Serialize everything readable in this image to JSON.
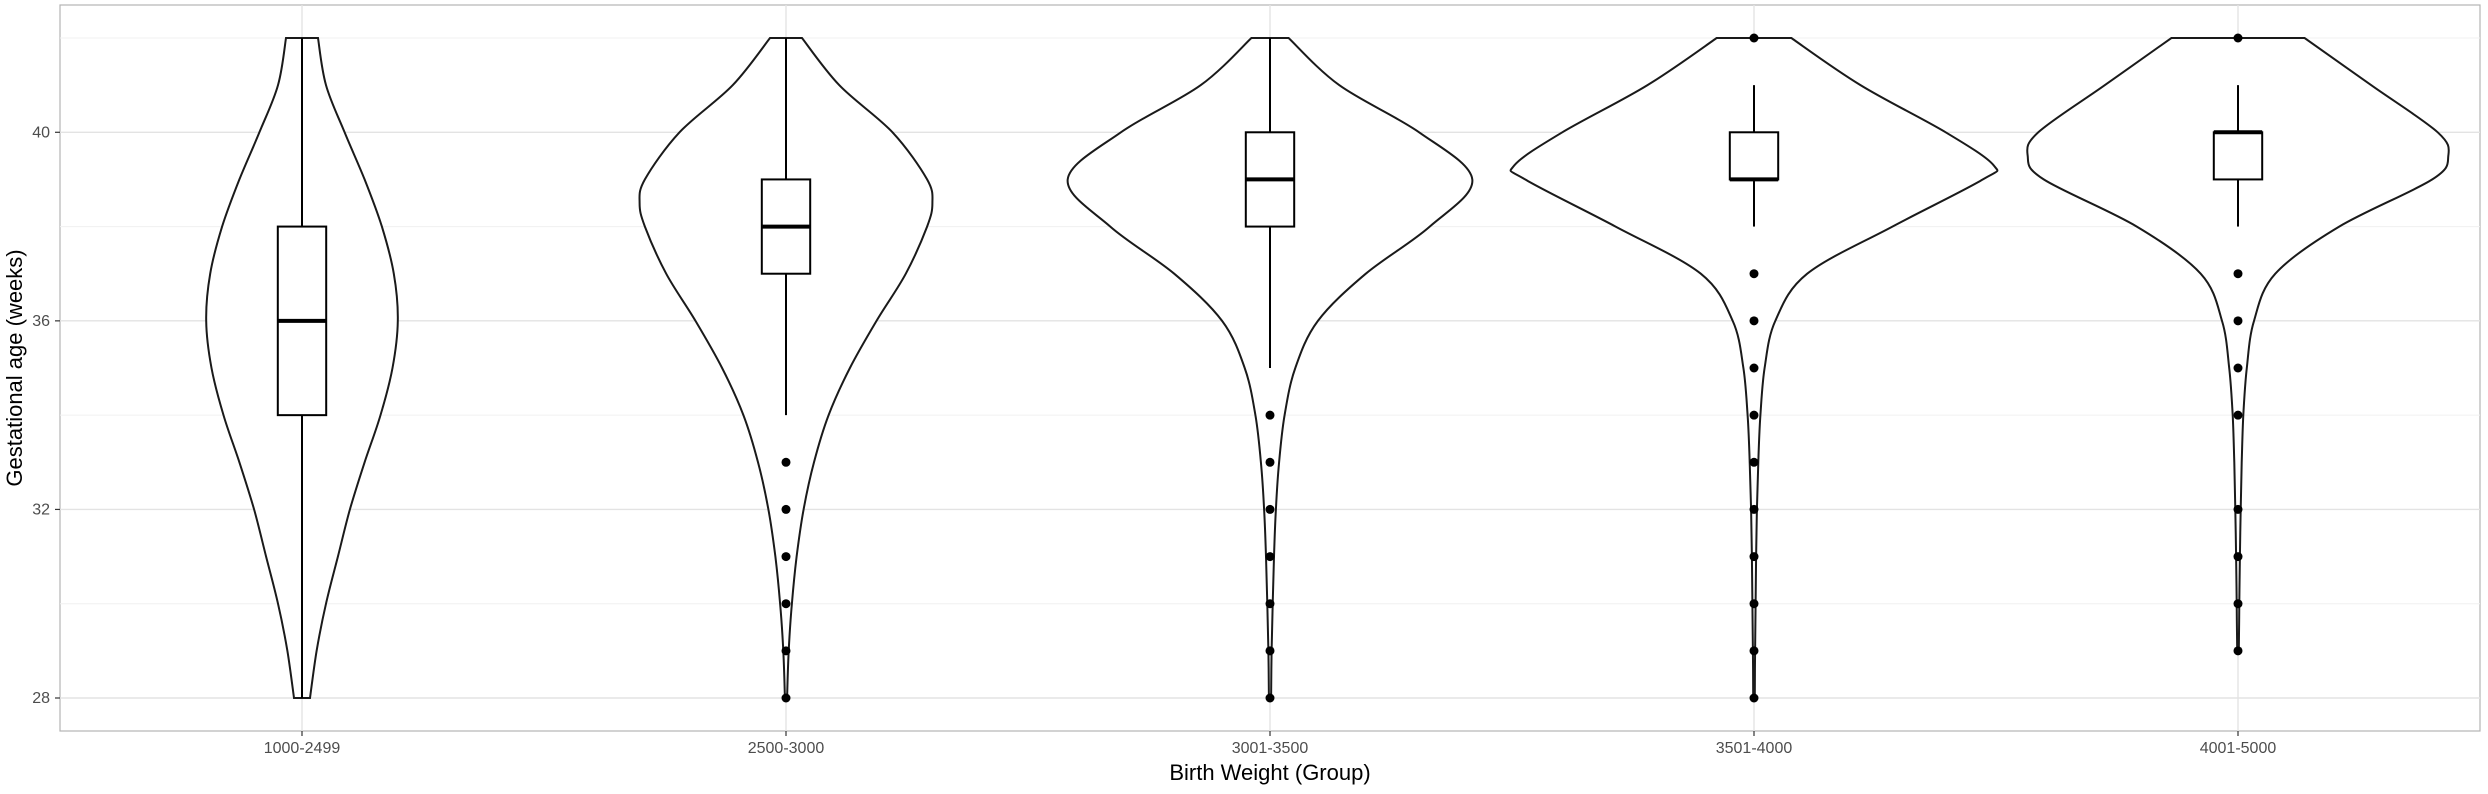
{
  "chart_data": {
    "type": "violin",
    "title": "",
    "xlabel": "Birth Weight (Group)",
    "ylabel": "Gestational age (weeks)",
    "ylim": [
      27.3,
      42.7
    ],
    "yticks": [
      28,
      32,
      36,
      40
    ],
    "grid": true,
    "categories": [
      "1000-2499",
      "2500-3000",
      "3001-3500",
      "3501-4000",
      "4001-5000"
    ],
    "groups": [
      {
        "name": "1000-2499",
        "violin": [
          [
            28,
            0.03
          ],
          [
            29,
            0.055
          ],
          [
            30,
            0.09
          ],
          [
            31,
            0.135
          ],
          [
            32,
            0.18
          ],
          [
            33,
            0.235
          ],
          [
            34,
            0.295
          ],
          [
            35,
            0.34
          ],
          [
            36,
            0.36
          ],
          [
            37,
            0.345
          ],
          [
            38,
            0.3
          ],
          [
            39,
            0.235
          ],
          [
            40,
            0.16
          ],
          [
            41,
            0.09
          ],
          [
            42,
            0.06
          ]
        ],
        "box": {
          "min": 28,
          "q1": 34,
          "median": 36,
          "q3": 38,
          "max": 42
        },
        "outliers": []
      },
      {
        "name": "2500-3000",
        "violin": [
          [
            28,
            0.004
          ],
          [
            29,
            0.01
          ],
          [
            30,
            0.022
          ],
          [
            31,
            0.04
          ],
          [
            32,
            0.066
          ],
          [
            33,
            0.105
          ],
          [
            34,
            0.16
          ],
          [
            35,
            0.24
          ],
          [
            36,
            0.34
          ],
          [
            37,
            0.45
          ],
          [
            38,
            0.53
          ],
          [
            38.5,
            0.55
          ],
          [
            39,
            0.53
          ],
          [
            40,
            0.4
          ],
          [
            41,
            0.2
          ],
          [
            42,
            0.06
          ]
        ],
        "box": {
          "min": 34,
          "q1": 37,
          "median": 38,
          "q3": 39,
          "max": 42
        },
        "outliers": [
          33,
          32,
          31,
          30,
          29,
          28
        ]
      },
      {
        "name": "3001-3500",
        "violin": [
          [
            28,
            0.004
          ],
          [
            29,
            0.006
          ],
          [
            30,
            0.01
          ],
          [
            31,
            0.015
          ],
          [
            32,
            0.022
          ],
          [
            33,
            0.034
          ],
          [
            34,
            0.055
          ],
          [
            35,
            0.095
          ],
          [
            36,
            0.18
          ],
          [
            37,
            0.36
          ],
          [
            38,
            0.6
          ],
          [
            39,
            0.76
          ],
          [
            40,
            0.56
          ],
          [
            41,
            0.26
          ],
          [
            42,
            0.07
          ]
        ],
        "box": {
          "min": 35,
          "q1": 38,
          "median": 39,
          "q3": 40,
          "max": 42
        },
        "outliers": [
          34,
          33,
          32,
          31,
          30,
          29,
          28
        ]
      },
      {
        "name": "3501-4000",
        "violin": [
          [
            28,
            0.003
          ],
          [
            29,
            0.004
          ],
          [
            30,
            0.006
          ],
          [
            31,
            0.008
          ],
          [
            32,
            0.011
          ],
          [
            33,
            0.016
          ],
          [
            34,
            0.024
          ],
          [
            35,
            0.04
          ],
          [
            36,
            0.08
          ],
          [
            37,
            0.2
          ],
          [
            38,
            0.52
          ],
          [
            39,
            0.86
          ],
          [
            39.3,
            0.9
          ],
          [
            40,
            0.72
          ],
          [
            41,
            0.4
          ],
          [
            42,
            0.14
          ]
        ],
        "box": {
          "min": 38,
          "q1": 39,
          "median": 39,
          "q3": 40,
          "max": 41
        },
        "outliers": [
          42,
          37,
          36,
          35,
          34,
          33,
          32,
          31,
          30,
          29,
          28
        ]
      },
      {
        "name": "4001-5000",
        "violin": [
          [
            29,
            0.003
          ],
          [
            30,
            0.005
          ],
          [
            31,
            0.007
          ],
          [
            32,
            0.01
          ],
          [
            33,
            0.014
          ],
          [
            34,
            0.02
          ],
          [
            35,
            0.033
          ],
          [
            36,
            0.06
          ],
          [
            37,
            0.14
          ],
          [
            38,
            0.38
          ],
          [
            39,
            0.73
          ],
          [
            39.5,
            0.79
          ],
          [
            40,
            0.75
          ],
          [
            41,
            0.5
          ],
          [
            42,
            0.25
          ]
        ],
        "box": {
          "min": 38,
          "q1": 39,
          "median": 40,
          "q3": 40,
          "max": 41
        },
        "outliers": [
          42,
          37,
          36,
          35,
          34,
          32,
          31,
          30,
          29
        ]
      }
    ]
  }
}
